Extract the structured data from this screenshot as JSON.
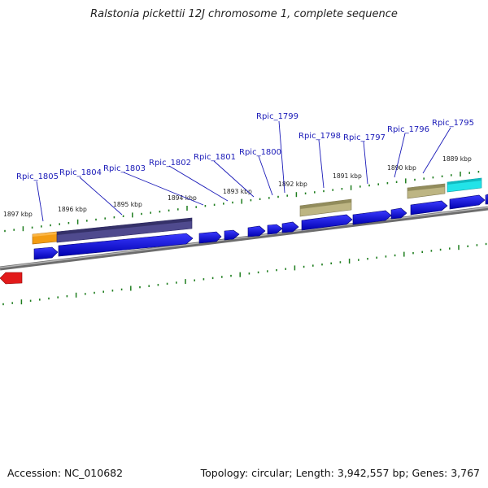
{
  "title": "Ralstonia pickettii 12J chromosome 1, complete sequence",
  "footer": {
    "accession": "Accession: NC_010682",
    "summary": "Topology: circular; Length: 3,942,557 bp; Genes: 3,767"
  },
  "ruler_labels": [
    "1897 kbp",
    "1896 kbp",
    "1895 kbp",
    "1894 kbp",
    "1893 kbp",
    "1892 kbp",
    "1891 kbp",
    "1890 kbp",
    "1889 kbp"
  ],
  "gene_labels": [
    "Rpic_1805",
    "Rpic_1804",
    "Rpic_1803",
    "Rpic_1802",
    "Rpic_1801",
    "Rpic_1800",
    "Rpic_1799",
    "Rpic_1798",
    "Rpic_1797",
    "Rpic_1796",
    "Rpic_1795"
  ],
  "colors": {
    "backbone": "#8c8c8c",
    "gene": "#0a0adc",
    "tick": "#1e7d1e",
    "label": "#1a1ab8",
    "orange": "#f39c12",
    "purple": "#4f4a8e",
    "khaki": "#bdb583",
    "cyan": "#22e3e8",
    "red": "#e21a1a"
  }
}
